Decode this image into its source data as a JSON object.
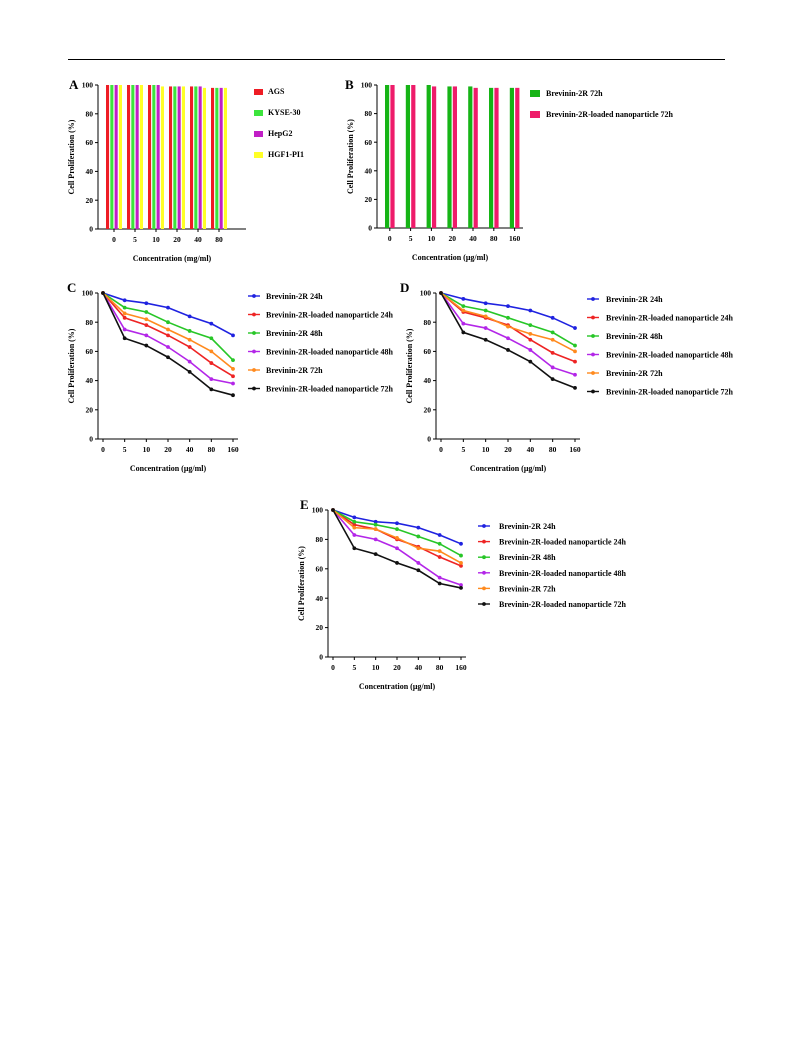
{
  "colors": {
    "AGS": "#ee1c24",
    "KYSE-30": "#3ce43c",
    "HepG2": "#c11fc6",
    "HGF1-PI1": "#ffff26",
    "Brevinin-2R 72h": "#16b416",
    "Brevinin-2R-loaded nanoparticle 72h": "#ee1c6a",
    "Brevinin-2R 24h": "#1f22e0",
    "Brevinin-2R-loaded nanoparticle 24h": "#ee2424",
    "Brevinin-2R 48h": "#27c627",
    "Brevinin-2R-loaded nanoparticle 48h": "#b326e8",
    "Brevinin-2R 72h line": "#ff8a1e",
    "Brevinin-2R-loaded nanoparticle 72h line": "#111111"
  },
  "chart_data": [
    {
      "panel": "A",
      "type": "bar",
      "xlabel": "Concentration (mg/ml)",
      "ylabel": "Cell Proliferation (%)",
      "ylim": [
        0,
        100
      ],
      "yticks": [
        0,
        20,
        40,
        60,
        80,
        100
      ],
      "legend_position": "right",
      "categories": [
        "0",
        "5",
        "10",
        "20",
        "40",
        "80"
      ],
      "series": [
        {
          "name": "AGS",
          "values": [
            100,
            100,
            100,
            99,
            99,
            98
          ]
        },
        {
          "name": "KYSE-30",
          "values": [
            100,
            100,
            100,
            99,
            99,
            98
          ]
        },
        {
          "name": "HepG2",
          "values": [
            100,
            100,
            100,
            99,
            99,
            98
          ]
        },
        {
          "name": "HGF1-PI1",
          "values": [
            100,
            100,
            99,
            99,
            98,
            98
          ]
        }
      ]
    },
    {
      "panel": "B",
      "type": "bar",
      "xlabel": "Concentration (μg/ml)",
      "ylabel": "Cell Proliferation (%)",
      "ylim": [
        0,
        100
      ],
      "yticks": [
        0,
        20,
        40,
        60,
        80,
        100
      ],
      "legend_position": "right",
      "categories": [
        "0",
        "5",
        "10",
        "20",
        "40",
        "80",
        "160"
      ],
      "series": [
        {
          "name": "Brevinin-2R 72h",
          "values": [
            100,
            100,
            100,
            99,
            99,
            98,
            98
          ]
        },
        {
          "name": "Brevinin-2R-loaded nanoparticle 72h",
          "values": [
            100,
            100,
            99,
            99,
            98,
            98,
            98
          ]
        }
      ]
    },
    {
      "panel": "C",
      "type": "line",
      "xlabel": "Concentration (μg/ml)",
      "ylabel": "Cell Proliferation (%)",
      "ylim": [
        0,
        100
      ],
      "yticks": [
        0,
        20,
        40,
        60,
        80,
        100
      ],
      "legend_position": "right",
      "categories": [
        "0",
        "5",
        "10",
        "20",
        "40",
        "80",
        "160"
      ],
      "series": [
        {
          "name": "Brevinin-2R 24h",
          "values": [
            100,
            95,
            93,
            90,
            84,
            79,
            71
          ]
        },
        {
          "name": "Brevinin-2R-loaded nanoparticle 24h",
          "values": [
            100,
            83,
            78,
            71,
            63,
            52,
            43
          ]
        },
        {
          "name": "Brevinin-2R 48h",
          "values": [
            100,
            90,
            87,
            80,
            74,
            69,
            54
          ]
        },
        {
          "name": "Brevinin-2R-loaded nanoparticle 48h",
          "values": [
            100,
            75,
            71,
            63,
            53,
            41,
            38
          ]
        },
        {
          "name": "Brevinin-2R 72h",
          "values": [
            100,
            86,
            82,
            75,
            68,
            60,
            48
          ]
        },
        {
          "name": "Brevinin-2R-loaded nanoparticle 72h",
          "values": [
            100,
            69,
            64,
            56,
            46,
            34,
            30
          ]
        }
      ]
    },
    {
      "panel": "D",
      "type": "line",
      "xlabel": "Concentration (μg/ml)",
      "ylabel": "Cell Proliferation (%)",
      "ylim": [
        0,
        100
      ],
      "yticks": [
        0,
        20,
        40,
        60,
        80,
        100
      ],
      "legend_position": "right",
      "categories": [
        "0",
        "5",
        "10",
        "20",
        "40",
        "80",
        "160"
      ],
      "series": [
        {
          "name": "Brevinin-2R 24h",
          "values": [
            100,
            96,
            93,
            91,
            88,
            83,
            76
          ]
        },
        {
          "name": "Brevinin-2R-loaded nanoparticle 24h",
          "values": [
            100,
            87,
            83,
            78,
            68,
            59,
            53
          ]
        },
        {
          "name": "Brevinin-2R 48h",
          "values": [
            100,
            91,
            88,
            83,
            78,
            73,
            64
          ]
        },
        {
          "name": "Brevinin-2R-loaded nanoparticle 48h",
          "values": [
            100,
            79,
            76,
            69,
            61,
            49,
            44
          ]
        },
        {
          "name": "Brevinin-2R 72h",
          "values": [
            100,
            88,
            84,
            77,
            72,
            68,
            60
          ]
        },
        {
          "name": "Brevinin-2R-loaded nanoparticle 72h",
          "values": [
            100,
            73,
            68,
            61,
            53,
            41,
            35
          ]
        }
      ]
    },
    {
      "panel": "E",
      "type": "line",
      "xlabel": "Concentration (μg/ml)",
      "ylabel": "Cell Proliferation (%)",
      "ylim": [
        0,
        100
      ],
      "yticks": [
        0,
        20,
        40,
        60,
        80,
        100
      ],
      "legend_position": "right",
      "categories": [
        "0",
        "5",
        "10",
        "20",
        "40",
        "80",
        "160"
      ],
      "series": [
        {
          "name": "Brevinin-2R 24h",
          "values": [
            100,
            95,
            92,
            91,
            88,
            83,
            77
          ]
        },
        {
          "name": "Brevinin-2R-loaded nanoparticle 24h",
          "values": [
            100,
            90,
            87,
            80,
            75,
            68,
            62
          ]
        },
        {
          "name": "Brevinin-2R 48h",
          "values": [
            100,
            92,
            90,
            87,
            82,
            77,
            69
          ]
        },
        {
          "name": "Brevinin-2R-loaded nanoparticle 48h",
          "values": [
            100,
            83,
            80,
            74,
            64,
            54,
            49
          ]
        },
        {
          "name": "Brevinin-2R 72h",
          "values": [
            100,
            88,
            87,
            81,
            74,
            72,
            64
          ]
        },
        {
          "name": "Brevinin-2R-loaded nanoparticle 72h",
          "values": [
            100,
            74,
            70,
            64,
            59,
            50,
            47
          ]
        }
      ]
    }
  ]
}
